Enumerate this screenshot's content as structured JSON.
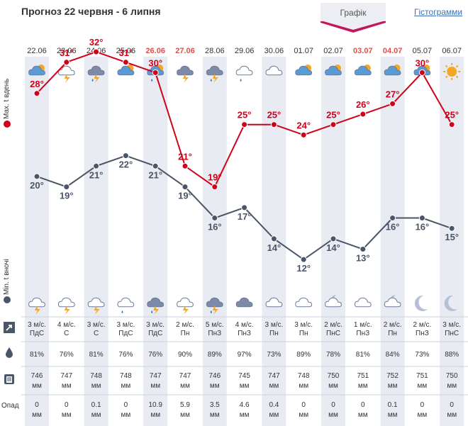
{
  "header": {
    "title": "Прогноз 22 червня - 6 липня",
    "tab_graph": "Графік",
    "tab_histograms": "Гістограмми"
  },
  "labels": {
    "max_label": "Max. t вдень",
    "min_label": "Min. t вночі",
    "precip_label": "Опад"
  },
  "colors": {
    "max_line": "#d0021b",
    "min_line": "#4a5568",
    "weekend": "#d9534f",
    "shaded_col": "#e8ebf2",
    "accent_link": "#3b6fb6",
    "tab_accent": "#c2185b"
  },
  "chart_data": {
    "type": "line",
    "categories": [
      "22.06",
      "23.06",
      "24.06",
      "25.06",
      "26.06",
      "27.06",
      "28.06",
      "29.06",
      "30.06",
      "01.07",
      "02.07",
      "03.07",
      "04.07",
      "05.07",
      "06.07"
    ],
    "series": [
      {
        "name": "Max. t вдень",
        "values": [
          28,
          31,
          32,
          31,
          30,
          21,
          19,
          25,
          25,
          24,
          25,
          26,
          27,
          30,
          25
        ]
      },
      {
        "name": "Min. t вночі",
        "values": [
          20,
          19,
          21,
          22,
          21,
          19,
          16,
          17,
          14,
          12,
          14,
          13,
          16,
          16,
          15
        ]
      }
    ],
    "ylim": [
      10,
      34
    ]
  },
  "days": [
    {
      "date": "22.06",
      "weekend": false,
      "day_icon": "partly-cloudy-sun-icon",
      "night_icon": "thunder-icon",
      "wind_speed": "3 м/с.",
      "wind_dir": "ПдС",
      "humidity": "81%",
      "pressure": "746",
      "pressure_unit": "мм",
      "precip": "0",
      "precip_unit": "мм",
      "max_label": "28°",
      "min_label": "20°"
    },
    {
      "date": "23.06",
      "weekend": false,
      "day_icon": "thunder-icon",
      "night_icon": "thunder-icon",
      "wind_speed": "4 м/с.",
      "wind_dir": "С",
      "humidity": "76%",
      "pressure": "747",
      "pressure_unit": "мм",
      "precip": "0",
      "precip_unit": "мм",
      "max_label": "31°",
      "min_label": "19°"
    },
    {
      "date": "24.06",
      "weekend": false,
      "day_icon": "storm-rain-icon",
      "night_icon": "thunder-icon",
      "wind_speed": "3 м/с.",
      "wind_dir": "С",
      "humidity": "81%",
      "pressure": "748",
      "pressure_unit": "мм",
      "precip": "0.1",
      "precip_unit": "мм",
      "max_label": "32°",
      "min_label": "21°"
    },
    {
      "date": "25.06",
      "weekend": false,
      "day_icon": "sun-cloud-icon",
      "night_icon": "cloud-rain-icon",
      "wind_speed": "3 м/с.",
      "wind_dir": "ПдС",
      "humidity": "76%",
      "pressure": "748",
      "pressure_unit": "мм",
      "precip": "0",
      "precip_unit": "мм",
      "max_label": "31°",
      "min_label": "22°"
    },
    {
      "date": "26.06",
      "weekend": true,
      "day_icon": "sun-rain-icon",
      "night_icon": "storm-rain-icon",
      "wind_speed": "3 м/с.",
      "wind_dir": "ПдС",
      "humidity": "76%",
      "pressure": "747",
      "pressure_unit": "мм",
      "precip": "10.9",
      "precip_unit": "мм",
      "max_label": "30°",
      "min_label": "21°"
    },
    {
      "date": "27.06",
      "weekend": true,
      "day_icon": "storm-icon",
      "night_icon": "thunder-icon",
      "wind_speed": "2 м/с.",
      "wind_dir": "Пн",
      "humidity": "90%",
      "pressure": "747",
      "pressure_unit": "мм",
      "precip": "5.9",
      "precip_unit": "мм",
      "max_label": "21°",
      "min_label": "19°"
    },
    {
      "date": "28.06",
      "weekend": false,
      "day_icon": "storm-rain-icon",
      "night_icon": "storm-rain-icon",
      "wind_speed": "5 м/с.",
      "wind_dir": "ПнЗ",
      "humidity": "89%",
      "pressure": "746",
      "pressure_unit": "мм",
      "precip": "3.5",
      "precip_unit": "мм",
      "max_label": "19°",
      "min_label": "16°"
    },
    {
      "date": "29.06",
      "weekend": false,
      "day_icon": "cloud-rain-icon",
      "night_icon": "cloud-dark-icon",
      "wind_speed": "4 м/с.",
      "wind_dir": "ПнЗ",
      "humidity": "97%",
      "pressure": "745",
      "pressure_unit": "мм",
      "precip": "4.6",
      "precip_unit": "мм",
      "max_label": "25°",
      "min_label": "17°"
    },
    {
      "date": "30.06",
      "weekend": false,
      "day_icon": "cloud-icon",
      "night_icon": "cloud-icon",
      "wind_speed": "3 м/с.",
      "wind_dir": "Пн",
      "humidity": "73%",
      "pressure": "747",
      "pressure_unit": "мм",
      "precip": "0.4",
      "precip_unit": "мм",
      "max_label": "25°",
      "min_label": "14°"
    },
    {
      "date": "01.07",
      "weekend": false,
      "day_icon": "partly-cloudy-sun-icon",
      "night_icon": "cloud-icon",
      "wind_speed": "3 м/с.",
      "wind_dir": "Пн",
      "humidity": "89%",
      "pressure": "748",
      "pressure_unit": "мм",
      "precip": "0",
      "precip_unit": "мм",
      "max_label": "24°",
      "min_label": "12°"
    },
    {
      "date": "02.07",
      "weekend": false,
      "day_icon": "sun-cloud-icon",
      "night_icon": "moon-cloud-icon",
      "wind_speed": "2 м/с.",
      "wind_dir": "ПнС",
      "humidity": "78%",
      "pressure": "750",
      "pressure_unit": "мм",
      "precip": "0",
      "precip_unit": "мм",
      "max_label": "25°",
      "min_label": "14°"
    },
    {
      "date": "03.07",
      "weekend": true,
      "day_icon": "sun-cloud-icon",
      "night_icon": "cloud-icon",
      "wind_speed": "1 м/с.",
      "wind_dir": "ПнЗ",
      "humidity": "81%",
      "pressure": "751",
      "pressure_unit": "мм",
      "precip": "0",
      "precip_unit": "мм",
      "max_label": "26°",
      "min_label": "13°"
    },
    {
      "date": "04.07",
      "weekend": true,
      "day_icon": "sun-cloud-icon",
      "night_icon": "moon-cloud-icon",
      "wind_speed": "2 м/с.",
      "wind_dir": "Пн",
      "humidity": "84%",
      "pressure": "752",
      "pressure_unit": "мм",
      "precip": "0.1",
      "precip_unit": "мм",
      "max_label": "27°",
      "min_label": "16°"
    },
    {
      "date": "05.07",
      "weekend": false,
      "day_icon": "sun-cloud-icon",
      "night_icon": "moon-icon",
      "wind_speed": "2 м/с.",
      "wind_dir": "ПнЗ",
      "humidity": "73%",
      "pressure": "751",
      "pressure_unit": "мм",
      "precip": "0",
      "precip_unit": "мм",
      "max_label": "30°",
      "min_label": "16°"
    },
    {
      "date": "06.07",
      "weekend": false,
      "day_icon": "sun-icon",
      "night_icon": "moon-icon",
      "wind_speed": "3 м/с.",
      "wind_dir": "ПнС",
      "humidity": "88%",
      "pressure": "750",
      "pressure_unit": "мм",
      "precip": "0",
      "precip_unit": "мм",
      "max_label": "25°",
      "min_label": "15°"
    }
  ]
}
